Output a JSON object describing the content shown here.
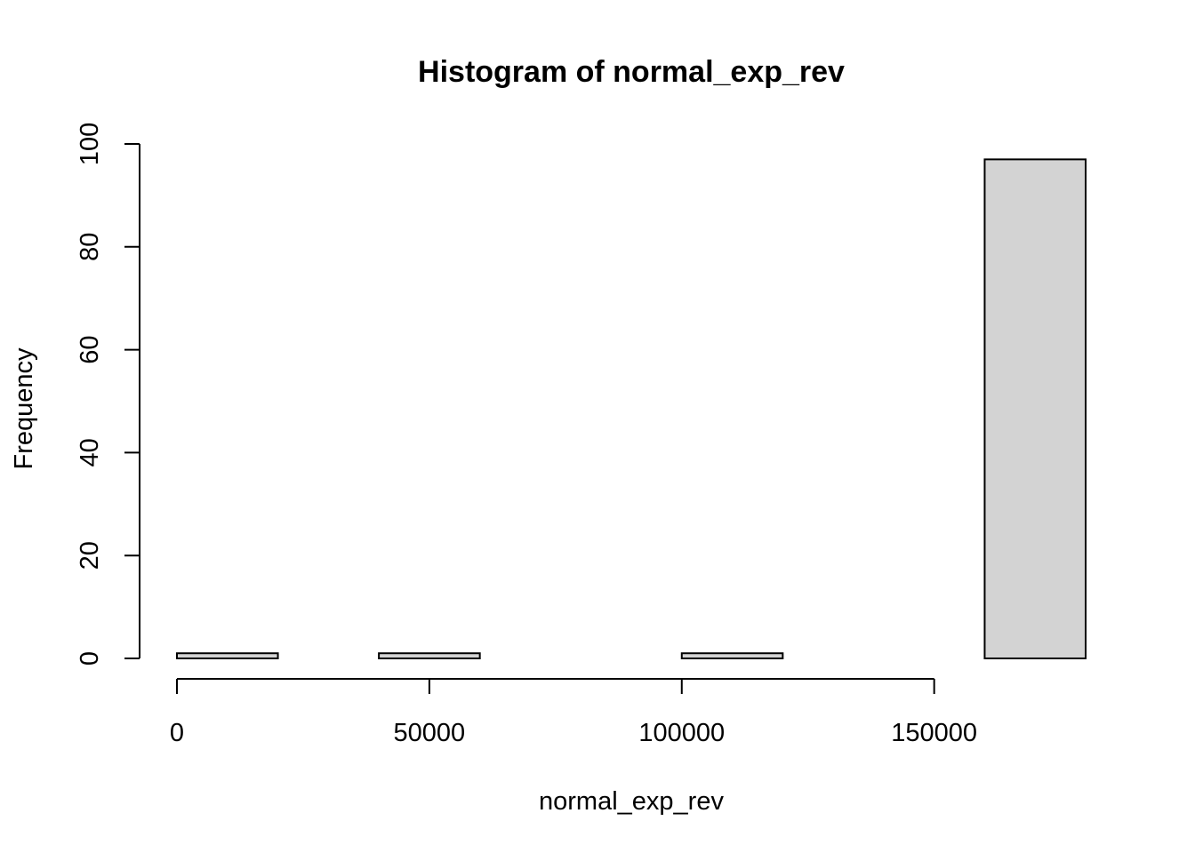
{
  "chart_data": {
    "type": "bar",
    "title": "Histogram of normal_exp_rev",
    "xlabel": "normal_exp_rev",
    "ylabel": "Frequency",
    "xlim": [
      0,
      180000
    ],
    "ylim": [
      0,
      100
    ],
    "x_ticks": [
      0,
      50000,
      100000,
      150000
    ],
    "x_tick_labels": [
      "0",
      "50000",
      "100000",
      "150000"
    ],
    "y_ticks": [
      0,
      20,
      40,
      60,
      80,
      100
    ],
    "y_tick_labels": [
      "0",
      "20",
      "40",
      "60",
      "80",
      "100"
    ],
    "bins": [
      {
        "start": 0,
        "end": 20000,
        "count": 1
      },
      {
        "start": 20000,
        "end": 40000,
        "count": 0
      },
      {
        "start": 40000,
        "end": 60000,
        "count": 1
      },
      {
        "start": 60000,
        "end": 80000,
        "count": 0
      },
      {
        "start": 80000,
        "end": 100000,
        "count": 0
      },
      {
        "start": 100000,
        "end": 120000,
        "count": 1
      },
      {
        "start": 120000,
        "end": 140000,
        "count": 0
      },
      {
        "start": 140000,
        "end": 160000,
        "count": 0
      },
      {
        "start": 160000,
        "end": 180000,
        "count": 97
      }
    ],
    "bar_fill": "#d3d3d3",
    "bar_stroke": "#000000",
    "grid": false,
    "legend": "none"
  }
}
